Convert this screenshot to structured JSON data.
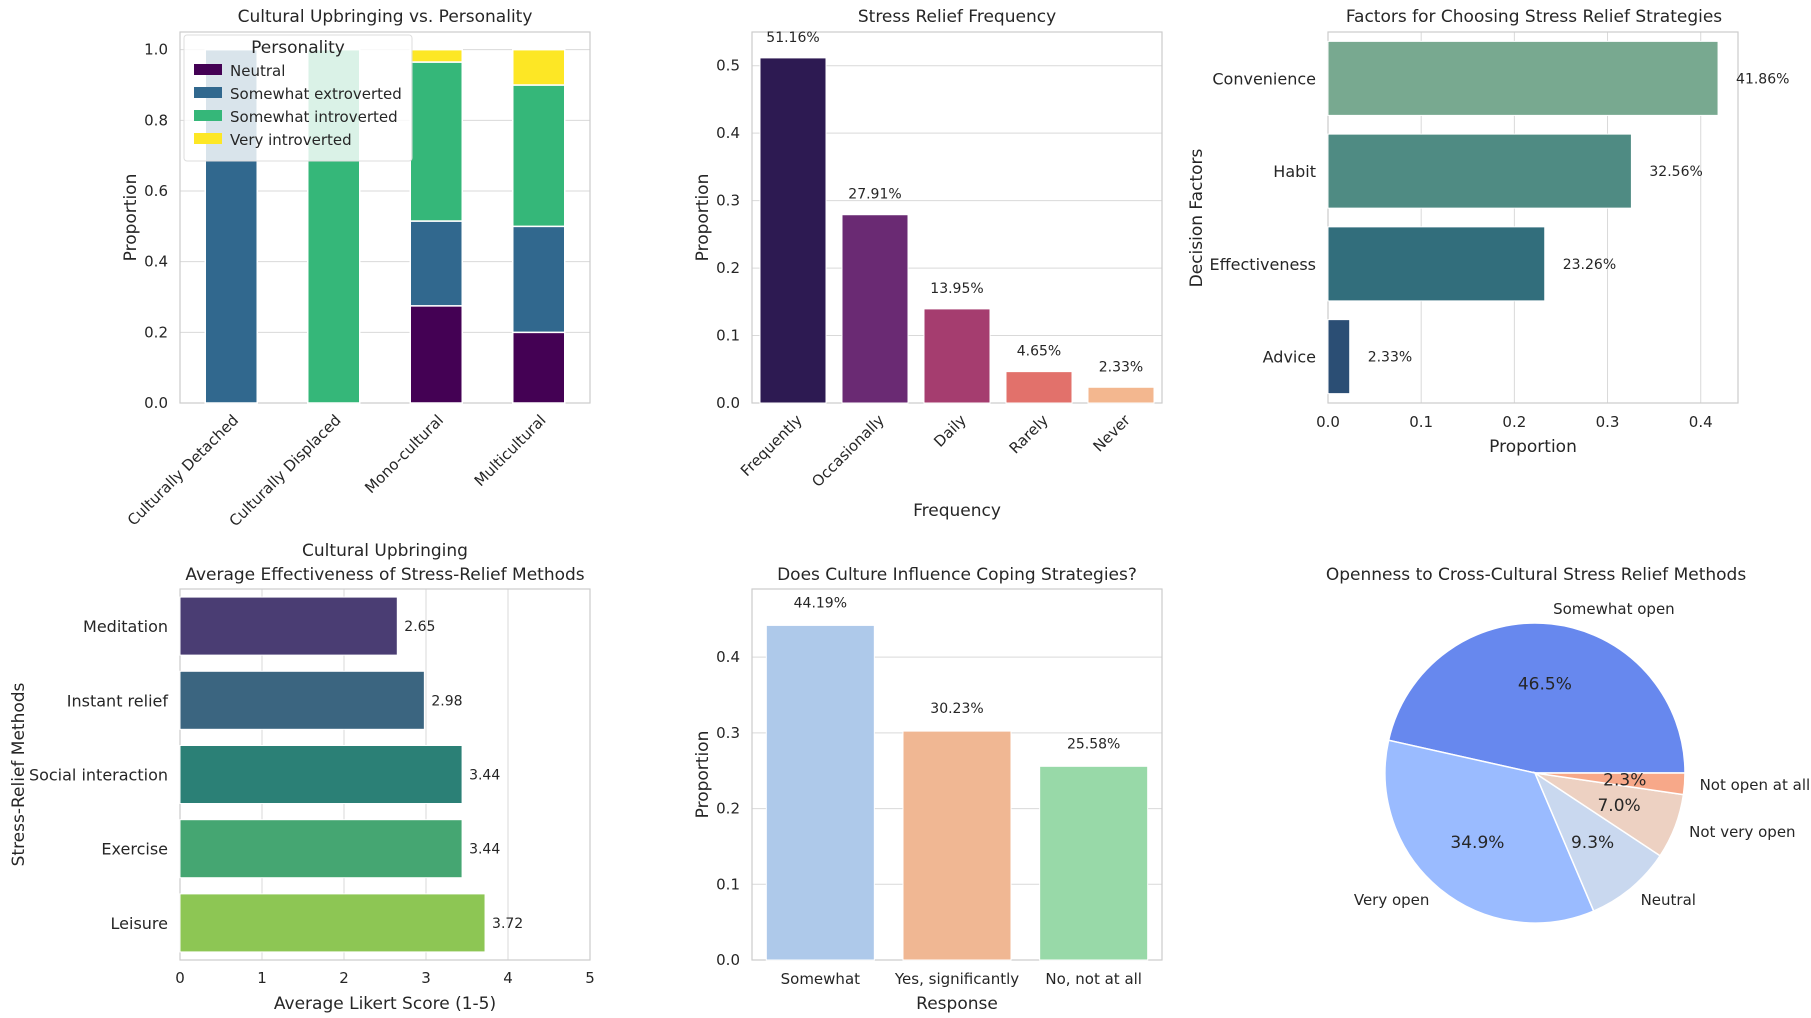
{
  "colors": {
    "grid": "#d9d9d9",
    "axis": "#cccccc",
    "neutral": "#440154",
    "somewhat_extroverted": "#31688e",
    "somewhat_introverted": "#35b779",
    "very_introverted": "#fde725",
    "freq_bars": [
      "#2d1a52",
      "#6a2a73",
      "#a53d6f",
      "#e2716b",
      "#f3b78f"
    ],
    "factor_bars": [
      "#78a990",
      "#4f8b83",
      "#326e7c",
      "#2b4e74"
    ],
    "method_bars": [
      "#4a3d73",
      "#3b6580",
      "#2b8076",
      "#45a672",
      "#8dc654"
    ],
    "culture_bars": [
      "#aec9ea",
      "#f0b793",
      "#98d9a8"
    ],
    "pie": [
      "#6788ee",
      "#9abbff",
      "#c9d8ef",
      "#edd1c2",
      "#f7a889"
    ]
  },
  "chart_data": [
    {
      "id": "personality",
      "type": "bar",
      "stacked": true,
      "title": "Cultural Upbringing vs. Personality",
      "xlabel": "Cultural Upbringing",
      "ylabel": "Proportion",
      "ylim": [
        0,
        1.05
      ],
      "yticks": [
        "0.0",
        "0.2",
        "0.4",
        "0.6",
        "0.8",
        "1.0"
      ],
      "categories": [
        "Culturally Detached",
        "Culturally Displaced",
        "Mono-cultural",
        "Multicultural"
      ],
      "legend_title": "Personality",
      "series": [
        {
          "name": "Neutral",
          "values": [
            0,
            0,
            0.275,
            0.2
          ]
        },
        {
          "name": "Somewhat extroverted",
          "values": [
            1.0,
            0,
            0.24,
            0.3
          ]
        },
        {
          "name": "Somewhat introverted",
          "values": [
            0,
            1.0,
            0.45,
            0.4
          ]
        },
        {
          "name": "Very introverted",
          "values": [
            0,
            0,
            0.035,
            0.1
          ]
        }
      ]
    },
    {
      "id": "frequency",
      "type": "bar",
      "title": "Stress Relief Frequency",
      "xlabel": "Frequency",
      "ylabel": "Proportion",
      "ylim": [
        0,
        0.55
      ],
      "yticks": [
        "0.0",
        "0.1",
        "0.2",
        "0.3",
        "0.4",
        "0.5"
      ],
      "categories": [
        "Frequently",
        "Occasionally",
        "Daily",
        "Rarely",
        "Never"
      ],
      "values": [
        0.5116,
        0.2791,
        0.1395,
        0.0465,
        0.0233
      ],
      "labels": [
        "51.16%",
        "27.91%",
        "13.95%",
        "4.65%",
        "2.33%"
      ]
    },
    {
      "id": "factors",
      "type": "bar",
      "orientation": "horizontal",
      "title": "Factors for Choosing Stress Relief Strategies",
      "xlabel": "Proportion",
      "ylabel": "Decision Factors",
      "xlim": [
        0,
        0.44
      ],
      "xticks": [
        "0.0",
        "0.1",
        "0.2",
        "0.3",
        "0.4"
      ],
      "categories": [
        "Convenience",
        "Habit",
        "Effectiveness",
        "Advice"
      ],
      "values": [
        0.4186,
        0.3256,
        0.2326,
        0.0233
      ],
      "labels": [
        "41.86%",
        "32.56%",
        "23.26%",
        "2.33%"
      ]
    },
    {
      "id": "methods",
      "type": "bar",
      "orientation": "horizontal",
      "title": "Average Effectiveness of Stress-Relief Methods",
      "xlabel": "Average Likert Score (1-5)",
      "ylabel": "Stress-Relief Methods",
      "xlim": [
        0,
        5
      ],
      "xticks": [
        "0",
        "1",
        "2",
        "3",
        "4",
        "5"
      ],
      "categories": [
        "Meditation",
        "Instant relief",
        "Social interaction",
        "Exercise",
        "Leisure"
      ],
      "values": [
        2.65,
        2.98,
        3.44,
        3.44,
        3.72
      ],
      "labels": [
        "2.65",
        "2.98",
        "3.44",
        "3.44",
        "3.72"
      ]
    },
    {
      "id": "culture",
      "type": "bar",
      "title": "Does Culture Influence Coping Strategies?",
      "xlabel": "Response",
      "ylabel": "Proportion",
      "ylim": [
        0,
        0.49
      ],
      "yticks": [
        "0.0",
        "0.1",
        "0.2",
        "0.3",
        "0.4"
      ],
      "categories": [
        "Somewhat",
        "Yes, significantly",
        "No, not at all"
      ],
      "values": [
        0.4419,
        0.3023,
        0.2558
      ],
      "labels": [
        "44.19%",
        "30.23%",
        "25.58%"
      ]
    },
    {
      "id": "openness",
      "type": "pie",
      "title": "Openness to Cross-Cultural Stress Relief Methods",
      "categories": [
        "Somewhat open",
        "Very open",
        "Neutral",
        "Not very open",
        "Not open at all"
      ],
      "values": [
        46.5,
        34.9,
        9.3,
        7.0,
        2.3
      ],
      "labels": [
        "46.5%",
        "34.9%",
        "9.3%",
        "7.0%",
        "2.3%"
      ]
    }
  ]
}
